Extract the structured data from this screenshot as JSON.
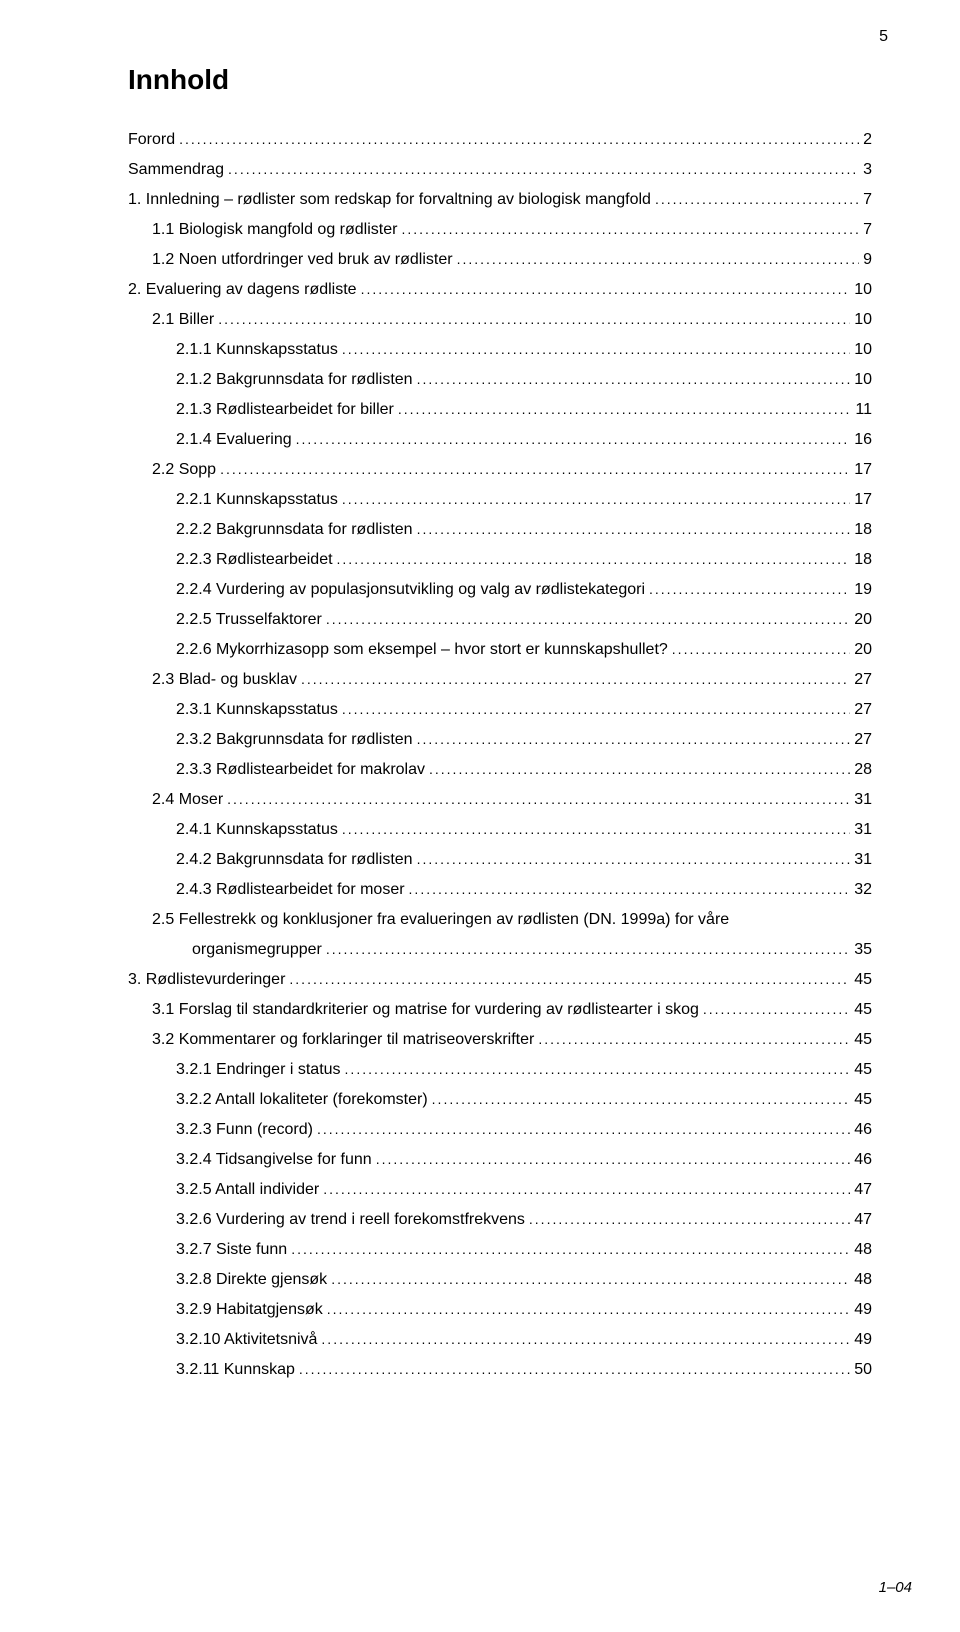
{
  "page_number_top": "5",
  "title": "Innhold",
  "footer_code": "1–04",
  "toc": [
    {
      "label": "Forord",
      "page": "2",
      "indent": 0
    },
    {
      "label": "Sammendrag",
      "page": "3",
      "indent": 0
    },
    {
      "label": "1. Innledning – rødlister som redskap for forvaltning av biologisk mangfold",
      "page": "7",
      "indent": 0
    },
    {
      "label": "1.1 Biologisk mangfold og rødlister",
      "page": "7",
      "indent": 1
    },
    {
      "label": "1.2 Noen utfordringer ved bruk av rødlister",
      "page": "9",
      "indent": 1
    },
    {
      "label": "2. Evaluering av dagens rødliste",
      "page": "10",
      "indent": 0
    },
    {
      "label": "2.1 Biller",
      "page": "10",
      "indent": 1
    },
    {
      "label": "2.1.1 Kunnskapsstatus",
      "page": "10",
      "indent": 2
    },
    {
      "label": "2.1.2 Bakgrunnsdata for rødlisten",
      "page": "10",
      "indent": 2
    },
    {
      "label": "2.1.3 Rødlistearbeidet for biller",
      "page": "11",
      "indent": 2
    },
    {
      "label": "2.1.4 Evaluering",
      "page": "16",
      "indent": 2
    },
    {
      "label": "2.2 Sopp",
      "page": "17",
      "indent": 1
    },
    {
      "label": "2.2.1 Kunnskapsstatus",
      "page": "17",
      "indent": 2
    },
    {
      "label": "2.2.2 Bakgrunnsdata for rødlisten",
      "page": "18",
      "indent": 2
    },
    {
      "label": "2.2.3 Rødlistearbeidet",
      "page": "18",
      "indent": 2
    },
    {
      "label": "2.2.4 Vurdering av populasjonsutvikling og valg av rødlistekategori",
      "page": "19",
      "indent": 2
    },
    {
      "label": "2.2.5 Trusselfaktorer",
      "page": "20",
      "indent": 2
    },
    {
      "label": "2.2.6 Mykorrhizasopp som eksempel – hvor stort er kunnskapshullet?",
      "page": "20",
      "indent": 2
    },
    {
      "label": "2.3 Blad- og busklav",
      "page": "27",
      "indent": 1
    },
    {
      "label": "2.3.1 Kunnskapsstatus",
      "page": "27",
      "indent": 2
    },
    {
      "label": "2.3.2 Bakgrunnsdata for rødlisten",
      "page": "27",
      "indent": 2
    },
    {
      "label": "2.3.3 Rødlistearbeidet for makrolav",
      "page": "28",
      "indent": 2
    },
    {
      "label": "2.4 Moser",
      "page": "31",
      "indent": 1
    },
    {
      "label": "2.4.1 Kunnskapsstatus",
      "page": "31",
      "indent": 2
    },
    {
      "label": "2.4.2 Bakgrunnsdata for rødlisten",
      "page": "31",
      "indent": 2
    },
    {
      "label": "2.4.3 Rødlistearbeidet for moser",
      "page": "32",
      "indent": 2
    },
    {
      "label": "2.5 Fellestrekk og konklusjoner fra evalueringen av rødlisten (DN. 1999a) for våre",
      "page": "",
      "indent": 1,
      "no_leader": true
    },
    {
      "label": "organismegrupper",
      "page": "35",
      "indent": "1-cont"
    },
    {
      "label": "3. Rødlistevurderinger",
      "page": "45",
      "indent": 0
    },
    {
      "label": "3.1 Forslag til standardkriterier og matrise for vurdering av rødlistearter i skog",
      "page": "45",
      "indent": 1
    },
    {
      "label": "3.2 Kommentarer og forklaringer til matriseoverskrifter",
      "page": "45",
      "indent": 1
    },
    {
      "label": "3.2.1 Endringer i status",
      "page": "45",
      "indent": 2
    },
    {
      "label": "3.2.2 Antall lokaliteter (forekomster)",
      "page": "45",
      "indent": 2
    },
    {
      "label": "3.2.3 Funn (record)",
      "page": "46",
      "indent": 2
    },
    {
      "label": "3.2.4 Tidsangivelse for funn",
      "page": "46",
      "indent": 2
    },
    {
      "label": "3.2.5 Antall individer",
      "page": "47",
      "indent": 2
    },
    {
      "label": "3.2.6 Vurdering av trend i reell forekomstfrekvens",
      "page": "47",
      "indent": 2
    },
    {
      "label": "3.2.7 Siste funn",
      "page": "48",
      "indent": 2
    },
    {
      "label": "3.2.8 Direkte gjensøk",
      "page": "48",
      "indent": 2
    },
    {
      "label": "3.2.9 Habitatgjensøk",
      "page": "49",
      "indent": 2
    },
    {
      "label": "3.2.10 Aktivitetsnivå",
      "page": "49",
      "indent": 2
    },
    {
      "label": "3.2.11 Kunnskap",
      "page": "50",
      "indent": 2
    }
  ]
}
